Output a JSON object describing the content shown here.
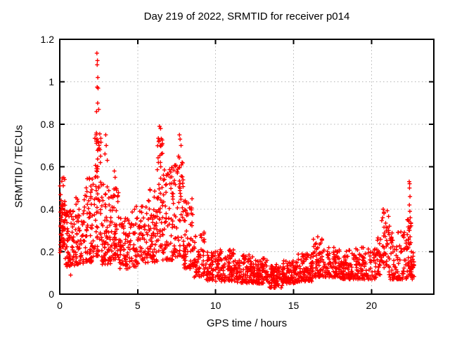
{
  "page": {
    "background": "#ffffff"
  },
  "chart_data": {
    "type": "scatter",
    "title": "Day 219 of 2022, SRMTID for receiver p014",
    "xlabel": "GPS time / hours",
    "ylabel": "SRMTID / TECUs",
    "xlim": [
      0,
      24
    ],
    "ylim": [
      0,
      1.2
    ],
    "xticks": [
      0,
      5,
      10,
      15,
      20
    ],
    "yticks": [
      0,
      0.2,
      0.4,
      0.6,
      0.8,
      1,
      1.2
    ],
    "grid": true,
    "legend": "none",
    "marker": "plus",
    "marker_color": "#ff0000",
    "grid_color": "#b4b4b4",
    "axis_color": "#000000",
    "cluster_fields": [
      "t_start_hours",
      "t_end_hours",
      "n_points",
      "y_min_tecus",
      "y_max_tecus",
      "skew_toward_min"
    ],
    "clusters": [
      [
        0.02,
        0.35,
        55,
        0.18,
        0.55,
        1.0
      ],
      [
        0.3,
        1.0,
        75,
        0.13,
        0.4,
        1.5
      ],
      [
        1.0,
        1.6,
        60,
        0.14,
        0.46,
        1.5
      ],
      [
        1.6,
        2.2,
        65,
        0.15,
        0.55,
        1.5
      ],
      [
        2.2,
        2.65,
        60,
        0.18,
        0.76,
        1.3
      ],
      [
        2.65,
        3.3,
        75,
        0.14,
        0.52,
        1.6
      ],
      [
        3.3,
        3.8,
        55,
        0.16,
        0.5,
        1.5
      ],
      [
        3.8,
        4.6,
        70,
        0.12,
        0.36,
        1.5
      ],
      [
        4.6,
        5.6,
        80,
        0.13,
        0.42,
        1.5
      ],
      [
        5.6,
        6.25,
        65,
        0.15,
        0.5,
        1.5
      ],
      [
        6.25,
        6.6,
        45,
        0.2,
        0.75,
        1.2
      ],
      [
        6.6,
        7.35,
        75,
        0.16,
        0.6,
        1.5
      ],
      [
        7.35,
        7.95,
        60,
        0.17,
        0.65,
        1.4
      ],
      [
        7.95,
        8.6,
        65,
        0.12,
        0.45,
        1.6
      ],
      [
        8.6,
        9.3,
        60,
        0.08,
        0.3,
        1.5
      ],
      [
        9.3,
        10.2,
        70,
        0.06,
        0.2,
        1.4
      ],
      [
        10.2,
        11.3,
        95,
        0.06,
        0.21,
        1.5
      ],
      [
        11.3,
        12.5,
        105,
        0.05,
        0.19,
        1.5
      ],
      [
        12.5,
        13.4,
        85,
        0.05,
        0.17,
        1.5
      ],
      [
        13.4,
        14.3,
        85,
        0.03,
        0.14,
        1.3
      ],
      [
        14.3,
        15.3,
        95,
        0.05,
        0.16,
        1.4
      ],
      [
        15.3,
        16.2,
        85,
        0.06,
        0.19,
        1.4
      ],
      [
        16.2,
        17.0,
        70,
        0.08,
        0.26,
        1.5
      ],
      [
        17.0,
        18.0,
        85,
        0.08,
        0.22,
        1.5
      ],
      [
        18.0,
        19.0,
        85,
        0.07,
        0.21,
        1.5
      ],
      [
        19.0,
        20.3,
        100,
        0.07,
        0.22,
        1.5
      ],
      [
        20.3,
        20.6,
        25,
        0.09,
        0.28,
        1.3
      ],
      [
        20.6,
        21.1,
        35,
        0.12,
        0.4,
        1.3
      ],
      [
        21.1,
        22.25,
        90,
        0.07,
        0.3,
        1.7
      ],
      [
        22.25,
        22.55,
        40,
        0.08,
        0.36,
        1.3
      ],
      [
        22.5,
        22.75,
        25,
        0.07,
        0.2,
        1.3
      ]
    ],
    "outliers": [
      [
        2.38,
        1.135
      ],
      [
        2.42,
        1.1
      ],
      [
        2.4,
        1.08
      ],
      [
        2.44,
        1.02
      ],
      [
        2.4,
        0.975
      ],
      [
        2.46,
        0.97
      ],
      [
        2.43,
        0.9
      ],
      [
        2.5,
        0.87
      ],
      [
        2.36,
        0.86
      ],
      [
        2.33,
        0.75
      ],
      [
        2.4,
        0.73
      ],
      [
        2.45,
        0.72
      ],
      [
        2.52,
        0.7
      ],
      [
        2.58,
        0.68
      ],
      [
        2.62,
        0.65
      ],
      [
        2.95,
        0.75
      ],
      [
        2.98,
        0.7
      ],
      [
        2.9,
        0.66
      ],
      [
        3.05,
        0.63
      ],
      [
        3.5,
        0.58
      ],
      [
        3.55,
        0.55
      ],
      [
        6.4,
        0.79
      ],
      [
        6.47,
        0.78
      ],
      [
        6.36,
        0.72
      ],
      [
        6.44,
        0.7
      ],
      [
        6.52,
        0.66
      ],
      [
        6.33,
        0.62
      ],
      [
        6.48,
        0.6
      ],
      [
        7.68,
        0.75
      ],
      [
        7.72,
        0.73
      ],
      [
        7.78,
        0.7
      ],
      [
        7.62,
        0.65
      ],
      [
        7.85,
        0.62
      ],
      [
        0.7,
        0.09
      ],
      [
        16.55,
        0.27
      ],
      [
        20.75,
        0.4
      ],
      [
        20.8,
        0.38
      ],
      [
        20.72,
        0.36
      ],
      [
        21.15,
        0.32
      ],
      [
        21.1,
        0.3
      ],
      [
        22.42,
        0.53
      ],
      [
        22.45,
        0.52
      ],
      [
        22.44,
        0.5
      ],
      [
        22.47,
        0.46
      ],
      [
        22.43,
        0.42
      ],
      [
        22.46,
        0.39
      ],
      [
        22.49,
        0.36
      ],
      [
        22.44,
        0.3
      ],
      [
        22.48,
        0.27
      ]
    ]
  }
}
